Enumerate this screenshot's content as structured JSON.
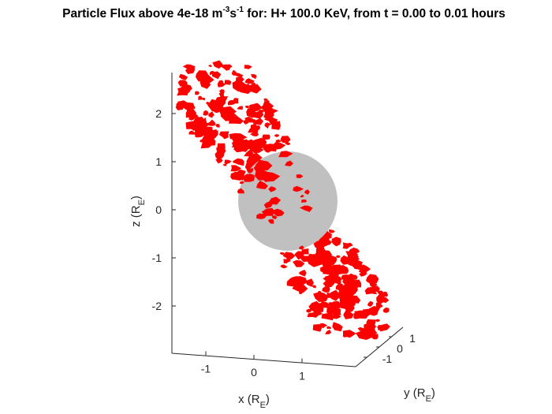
{
  "title": {
    "prefix": "Particle Flux above 4e-18 m",
    "exp1": "-3",
    "mid": "s",
    "exp2": "-1",
    "suffix": " for: H+ 100.0 KeV, from t = 0.00 to 0.01 hours"
  },
  "chart_data": {
    "type": "scatter",
    "view": "3d",
    "title": "Particle Flux above 4e-18 m^-3 s^-1 for: H+ 100.0 KeV, from t = 0.00 to 0.01 hours",
    "xlabel": "x (R_E)",
    "ylabel": "y (R_E)",
    "zlabel": "z (R_E)",
    "axes": {
      "x": {
        "ticks": [
          -1,
          0,
          1
        ],
        "tick_labels": [
          "-1",
          "0",
          "1"
        ],
        "label_main": "x (R",
        "label_sub": "E",
        "label_end": ")"
      },
      "y": {
        "ticks": [
          -1,
          0,
          1
        ],
        "tick_labels": [
          "-1",
          "0",
          "1"
        ],
        "label_main": "y (R",
        "label_sub": "E",
        "label_end": ")"
      },
      "z": {
        "ticks": [
          -2,
          -1,
          0,
          1,
          2
        ],
        "tick_labels": [
          "-2",
          "-1",
          "0",
          "1",
          "2"
        ],
        "label_main": "z (R",
        "label_sub": "E",
        "label_end": ")"
      }
    },
    "earth": {
      "shape": "sphere",
      "radius": 1,
      "center": [
        0,
        0,
        0
      ],
      "color": "#c0c0c0"
    },
    "flux_region": {
      "color": "#ff0000",
      "description_of_extent": "tilted band of flux patches along the dipole field direction",
      "z_range": [
        -2.7,
        3.0
      ],
      "tilt_dx_per_dz": -0.22,
      "mirrored": true
    },
    "grid": false
  },
  "colors": {
    "flux": "#ff0000",
    "earth": "#c0c0c0",
    "axis": "#262626"
  }
}
